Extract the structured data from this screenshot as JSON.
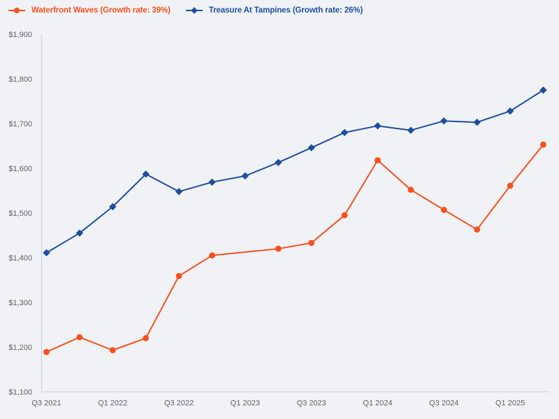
{
  "chart": {
    "background": "#f1f2f6",
    "axis_line_color": "#ccd5e8",
    "tick_label_color": "#5a616e",
    "legend": {
      "position": "top-left",
      "items": [
        {
          "label": "Waterfront Waves (Growth rate: 39%)",
          "color": "#f4511e",
          "marker": "circle"
        },
        {
          "label": "Treasure At Tampines (Growth rate: 26%)",
          "color": "#1f4e9e",
          "marker": "diamond"
        }
      ]
    }
  },
  "chart_data": {
    "type": "line",
    "title": "",
    "xlabel": "",
    "ylabel": "",
    "grid": false,
    "legend_position": "top-left",
    "categories": [
      "Q3 2021",
      "Q4 2021",
      "Q1 2022",
      "Q2 2022",
      "Q3 2022",
      "Q4 2022",
      "Q1 2023",
      "Q2 2023",
      "Q3 2023",
      "Q4 2023",
      "Q1 2024",
      "Q2 2024",
      "Q3 2024",
      "Q4 2024",
      "Q1 2025",
      "Q2 2025"
    ],
    "x_tick_labels": [
      "Q3 2021",
      "Q1 2022",
      "Q3 2022",
      "Q1 2023",
      "Q3 2023",
      "Q1 2024",
      "Q3 2024",
      "Q1 2025"
    ],
    "x_tick_indices": [
      0,
      2,
      4,
      6,
      8,
      10,
      12,
      14
    ],
    "ylim": [
      1100,
      1900
    ],
    "y_tick_step": 100,
    "y_tick_labels": [
      "$1,100",
      "$1,200",
      "$1,300",
      "$1,400",
      "$1,500",
      "$1,600",
      "$1,700",
      "$1,800",
      "$1,900"
    ],
    "series": [
      {
        "name": "Waterfront Waves",
        "growth_rate": "39%",
        "color": "#f4511e",
        "marker": "circle",
        "values": [
          1189,
          1222,
          1193,
          1220,
          1359,
          1405,
          null,
          1420,
          1433,
          1495,
          1618,
          1552,
          1507,
          1463,
          1561,
          1653
        ]
      },
      {
        "name": "Treasure At Tampines",
        "growth_rate": "26%",
        "color": "#1f4e9e",
        "marker": "diamond",
        "values": [
          1411,
          1455,
          1514,
          1587,
          1548,
          1569,
          1583,
          1613,
          1646,
          1680,
          1695,
          1685,
          1706,
          1703,
          1728,
          1775
        ]
      }
    ]
  }
}
